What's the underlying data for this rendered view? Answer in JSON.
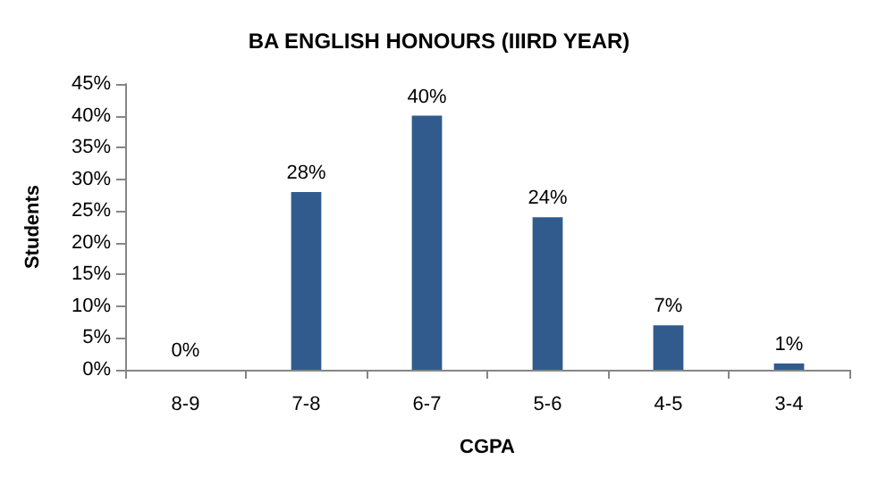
{
  "chart_data": {
    "type": "bar",
    "title": "BA ENGLISH HONOURS (IIIRD YEAR)",
    "xlabel": "CGPA",
    "ylabel": "Students",
    "categories": [
      "8-9",
      "7-8",
      "6-7",
      "5-6",
      "4-5",
      "3-4"
    ],
    "values": [
      0,
      28,
      40,
      24,
      7,
      1
    ],
    "value_labels": [
      "0%",
      "28%",
      "40%",
      "24%",
      "7%",
      "1%"
    ],
    "color": "#305b8c",
    "ylim": [
      0,
      45
    ],
    "yticks": [
      {
        "value": 0,
        "label": "0%"
      },
      {
        "value": 5,
        "label": "5%"
      },
      {
        "value": 10,
        "label": "10%"
      },
      {
        "value": 15,
        "label": "15%"
      },
      {
        "value": 20,
        "label": "20%"
      },
      {
        "value": 25,
        "label": "25%"
      },
      {
        "value": 30,
        "label": "30%"
      },
      {
        "value": 35,
        "label": "35%"
      },
      {
        "value": 40,
        "label": "40%"
      },
      {
        "value": 45,
        "label": "45%"
      }
    ],
    "tick_labels": "xy"
  }
}
